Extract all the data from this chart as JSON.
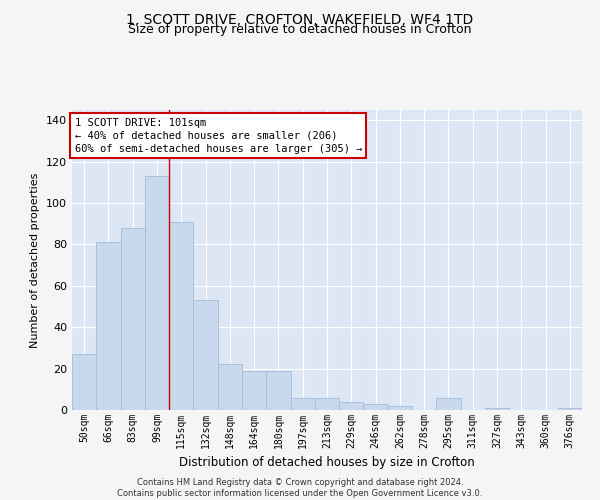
{
  "title": "1, SCOTT DRIVE, CROFTON, WAKEFIELD, WF4 1TD",
  "subtitle": "Size of property relative to detached houses in Crofton",
  "xlabel": "Distribution of detached houses by size in Crofton",
  "ylabel": "Number of detached properties",
  "bar_labels": [
    "50sqm",
    "66sqm",
    "83sqm",
    "99sqm",
    "115sqm",
    "132sqm",
    "148sqm",
    "164sqm",
    "180sqm",
    "197sqm",
    "213sqm",
    "229sqm",
    "246sqm",
    "262sqm",
    "278sqm",
    "295sqm",
    "311sqm",
    "327sqm",
    "343sqm",
    "360sqm",
    "376sqm"
  ],
  "bar_values": [
    27,
    81,
    88,
    113,
    91,
    53,
    22,
    19,
    19,
    6,
    6,
    4,
    3,
    2,
    0,
    6,
    0,
    1,
    0,
    0,
    1
  ],
  "bar_color": "#c9d9ed",
  "bar_edgecolor": "#aac0db",
  "background_color": "#dce6f5",
  "grid_color": "#ffffff",
  "annotation_text": "1 SCOTT DRIVE: 101sqm\n← 40% of detached houses are smaller (206)\n60% of semi-detached houses are larger (305) →",
  "vline_x": 3.5,
  "vline_color": "#cc0000",
  "annotation_box_facecolor": "#ffffff",
  "annotation_box_edgecolor": "#cc0000",
  "ylim": [
    0,
    145
  ],
  "yticks": [
    0,
    20,
    40,
    60,
    80,
    100,
    120,
    140
  ],
  "footer_text": "Contains HM Land Registry data © Crown copyright and database right 2024.\nContains public sector information licensed under the Open Government Licence v3.0.",
  "title_fontsize": 10,
  "subtitle_fontsize": 9,
  "ylabel_fontsize": 8,
  "xlabel_fontsize": 8.5,
  "tick_fontsize": 8,
  "annotation_fontsize": 7.5,
  "footer_fontsize": 6
}
